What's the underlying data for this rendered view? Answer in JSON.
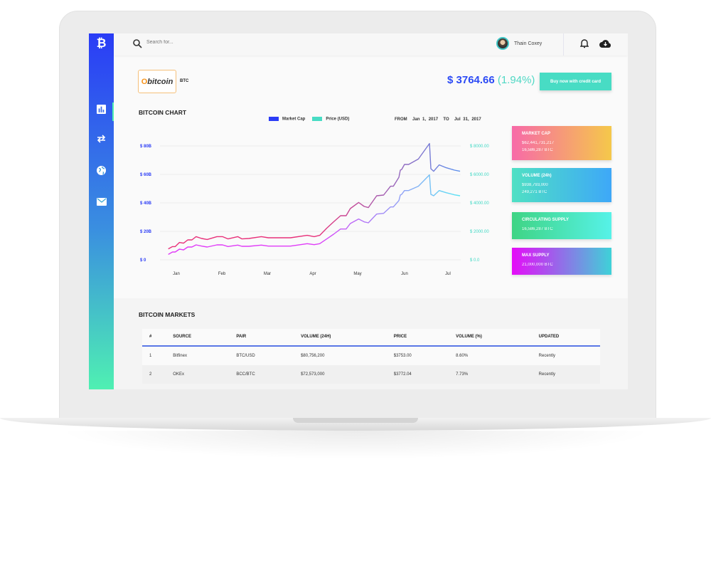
{
  "app": {
    "brand_icon": "bitcoin-icon",
    "colors": {
      "sidebar_top": "#2a3cf6",
      "sidebar_bottom": "#4ff0b2",
      "accent_blue": "#2b4af5",
      "accent_teal": "#48dcc4"
    }
  },
  "sidebar": {
    "items": [
      {
        "icon": "bar-chart-icon",
        "active": true
      },
      {
        "icon": "exchange-arrows-icon"
      },
      {
        "icon": "globe-icon"
      },
      {
        "icon": "mail-icon"
      }
    ]
  },
  "header": {
    "search_placeholder": "Search for...",
    "user_name": "Thain Coxey"
  },
  "coin": {
    "logo_text": "bitcoin",
    "symbol": "BTC",
    "price": "$ 3764.66",
    "change": "(1.94%)",
    "buy_label": "Buy now with credit card"
  },
  "chart_section": {
    "title": "BITCOIN CHART",
    "from_label": "FROM",
    "from": "Jan 1, 2017",
    "to_label": "TO",
    "to": "Jul 31, 2017"
  },
  "chart_data": {
    "type": "line",
    "series": [
      {
        "name": "Market Cap",
        "color": "#2b3cf6",
        "axis": "left",
        "values": [
          7.7,
          9.3,
          9.3,
          12.2,
          11.7,
          14,
          14,
          16.3,
          15,
          14.3,
          16.3,
          16.3,
          14.7,
          16.3,
          14.7,
          15,
          16.3,
          15.5,
          15.5,
          17.2,
          16.3,
          17.2,
          22.2,
          26.7,
          31,
          31,
          36,
          40.3,
          37.5,
          36.7,
          45,
          45.5,
          51.7,
          51.7,
          58,
          63,
          63.5,
          67,
          67,
          70.8,
          81.7,
          64,
          62.2,
          66.7,
          64.7,
          63,
          62.2
        ]
      },
      {
        "name": "Price (USD)",
        "color": "#48dcc4",
        "axis": "right",
        "values": [
          383,
          550,
          550,
          750,
          700,
          900,
          900,
          1050,
          967,
          900,
          1050,
          1050,
          933,
          1033,
          950,
          950,
          1033,
          967,
          967,
          1133,
          1067,
          1133,
          1467,
          1800,
          2167,
          2167,
          2550,
          2867,
          2667,
          2600,
          3217,
          3267,
          3717,
          3717,
          4167,
          4550,
          4600,
          4867,
          4867,
          5167,
          5967,
          4600,
          4500,
          4867,
          4717,
          4567,
          4500
        ]
      }
    ],
    "x": [
      "2017-01-01",
      "2017-01-04",
      "2017-01-06",
      "2017-01-09",
      "2017-01-12",
      "2017-01-15",
      "2017-01-18",
      "2017-01-21",
      "2017-01-25",
      "2017-01-29",
      "2017-02-05",
      "2017-02-09",
      "2017-02-13",
      "2017-02-20",
      "2017-02-23",
      "2017-02-28",
      "2017-03-09",
      "2017-03-14",
      "2017-03-30",
      "2017-04-11",
      "2017-04-16",
      "2017-04-20",
      "2017-04-25",
      "2017-04-30",
      "2017-05-05",
      "2017-05-09",
      "2017-05-12",
      "2017-05-18",
      "2017-05-22",
      "2017-05-25",
      "2017-05-31",
      "2017-06-05",
      "2017-06-10",
      "2017-06-12",
      "2017-06-16",
      "2017-06-17",
      "2017-06-18",
      "2017-06-20",
      "2017-06-23",
      "2017-06-30",
      "2017-07-08",
      "2017-07-09",
      "2017-07-11",
      "2017-07-15",
      "2017-07-20",
      "2017-07-26",
      "2017-07-30"
    ],
    "x_ticks": [
      "Jan",
      "Feb",
      "Mar",
      "Apr",
      "May",
      "Jun",
      "Jul"
    ],
    "y_left": {
      "ticks": [
        "$ 0",
        "$ 20B",
        "$ 40B",
        "$ 60B",
        "$ 80B"
      ],
      "range": [
        0,
        80
      ],
      "unit": "B USD"
    },
    "y_right": {
      "ticks": [
        "$ 0.0",
        "$ 2000.00",
        "$ 4000.00",
        "$ 6000.00",
        "$ 8000.00"
      ],
      "range": [
        0,
        8000
      ]
    },
    "xlim": [
      "2017-01-01",
      "2017-07-31"
    ],
    "grid": true,
    "legend": "top"
  },
  "cards": [
    {
      "title": "MARKET CAP",
      "lines": [
        "$62,441,731,217",
        "16,586,287 BTC"
      ],
      "gradient": [
        "#f76aa8",
        "#f5c84a"
      ]
    },
    {
      "title": "VOLUME (24h)",
      "lines": [
        "$938,793,000",
        "249,271 BTC"
      ],
      "gradient": [
        "#4fe0c4",
        "#3ea8f8"
      ]
    },
    {
      "title": "CIRCULATING SUPPLY",
      "lines": [
        "16,586,287 BTC"
      ],
      "gradient": [
        "#3fd484",
        "#56f2e8"
      ]
    },
    {
      "title": "MAX SUPPLY",
      "lines": [
        "21,000,000 BTC"
      ],
      "gradient": [
        "#e50cf8",
        "#3ed2d8"
      ]
    }
  ],
  "markets": {
    "title": "BITCOIN MARKETS",
    "columns": [
      "#",
      "SOURCE",
      "PAIR",
      "VOLUME (24H)",
      "PRICE",
      "VOLUME (%)",
      "UPDATED"
    ],
    "rows": [
      [
        "1",
        "Bitfinex",
        "BTC/USD",
        "$80,756,200",
        "$3753.00",
        "8.60%",
        "Recently"
      ],
      [
        "2",
        "OKEx",
        "BCC/BTC",
        "$72,573,000",
        "$3772.04",
        "7.73%",
        "Recently"
      ]
    ]
  }
}
